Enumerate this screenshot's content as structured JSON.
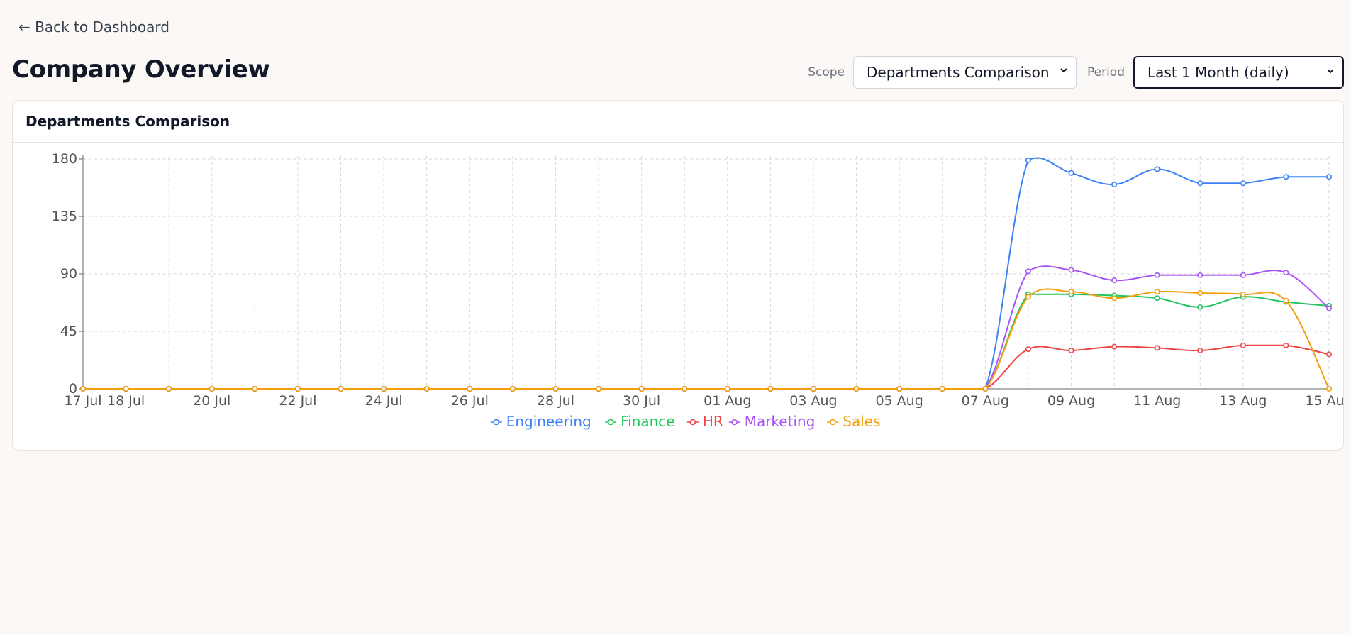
{
  "nav": {
    "back_label": "← Back to Dashboard"
  },
  "page": {
    "title": "Company Overview"
  },
  "controls": {
    "scope_label": "Scope",
    "scope_value": "Departments Comparison",
    "period_label": "Period",
    "period_value": "Last 1 Month (daily)"
  },
  "card": {
    "title": "Departments Comparison"
  },
  "chart_data": {
    "type": "line",
    "title": "",
    "xlabel": "",
    "ylabel": "",
    "ylim": [
      0,
      180
    ],
    "yticks": [
      0,
      45,
      90,
      135,
      180
    ],
    "grid": true,
    "legend_position": "bottom",
    "x": [
      "17 Jul",
      "18 Jul",
      "19 Jul",
      "20 Jul",
      "21 Jul",
      "22 Jul",
      "23 Jul",
      "24 Jul",
      "25 Jul",
      "26 Jul",
      "27 Jul",
      "28 Jul",
      "29 Jul",
      "30 Jul",
      "31 Jul",
      "01 Aug",
      "02 Aug",
      "03 Aug",
      "04 Aug",
      "05 Aug",
      "06 Aug",
      "07 Aug",
      "08 Aug",
      "09 Aug",
      "10 Aug",
      "11 Aug",
      "12 Aug",
      "13 Aug",
      "14 Aug",
      "15 Aug"
    ],
    "xtick_labels": [
      "17 Jul",
      "18 Jul",
      "20 Jul",
      "22 Jul",
      "24 Jul",
      "26 Jul",
      "28 Jul",
      "30 Jul",
      "01 Aug",
      "03 Aug",
      "05 Aug",
      "07 Aug",
      "09 Aug",
      "11 Aug",
      "13 Aug",
      "15 Aug"
    ],
    "series": [
      {
        "name": "Engineering",
        "color": "#3b82f6",
        "values": [
          0,
          0,
          0,
          0,
          0,
          0,
          0,
          0,
          0,
          0,
          0,
          0,
          0,
          0,
          0,
          0,
          0,
          0,
          0,
          0,
          0,
          0,
          179,
          169,
          160,
          172,
          161,
          161,
          166,
          166
        ]
      },
      {
        "name": "Finance",
        "color": "#22c55e",
        "values": [
          0,
          0,
          0,
          0,
          0,
          0,
          0,
          0,
          0,
          0,
          0,
          0,
          0,
          0,
          0,
          0,
          0,
          0,
          0,
          0,
          0,
          0,
          74,
          74,
          73,
          71,
          64,
          72,
          68,
          65
        ]
      },
      {
        "name": "HR",
        "color": "#ef4444",
        "values": [
          0,
          0,
          0,
          0,
          0,
          0,
          0,
          0,
          0,
          0,
          0,
          0,
          0,
          0,
          0,
          0,
          0,
          0,
          0,
          0,
          0,
          0,
          31,
          30,
          33,
          32,
          30,
          34,
          34,
          27
        ]
      },
      {
        "name": "Marketing",
        "color": "#a855f7",
        "values": [
          0,
          0,
          0,
          0,
          0,
          0,
          0,
          0,
          0,
          0,
          0,
          0,
          0,
          0,
          0,
          0,
          0,
          0,
          0,
          0,
          0,
          0,
          92,
          93,
          85,
          89,
          89,
          89,
          91,
          63
        ]
      },
      {
        "name": "Sales",
        "color": "#f59e0b",
        "values": [
          0,
          0,
          0,
          0,
          0,
          0,
          0,
          0,
          0,
          0,
          0,
          0,
          0,
          0,
          0,
          0,
          0,
          0,
          0,
          0,
          0,
          0,
          72,
          76,
          71,
          76,
          75,
          74,
          69,
          0
        ]
      }
    ]
  }
}
